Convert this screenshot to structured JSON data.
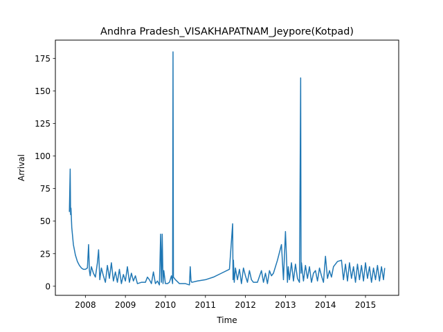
{
  "chart_data": {
    "type": "line",
    "title": "Andhra Pradesh_VISAKHAPATNAM_Jeypore(Kotpad)",
    "xlabel": "Time",
    "ylabel": "Arrival",
    "xlim": [
      2007.25,
      2015.83
    ],
    "ylim": [
      -7,
      189
    ],
    "x_ticks": [
      {
        "value": 2008,
        "label": "2008"
      },
      {
        "value": 2009,
        "label": "2009"
      },
      {
        "value": 2010,
        "label": "2010"
      },
      {
        "value": 2011,
        "label": "2011"
      },
      {
        "value": 2012,
        "label": "2012"
      },
      {
        "value": 2013,
        "label": "2013"
      },
      {
        "value": 2014,
        "label": "2014"
      },
      {
        "value": 2015,
        "label": "2015"
      }
    ],
    "y_ticks": [
      {
        "value": 0,
        "label": "0"
      },
      {
        "value": 25,
        "label": "25"
      },
      {
        "value": 50,
        "label": "50"
      },
      {
        "value": 75,
        "label": "75"
      },
      {
        "value": 100,
        "label": "100"
      },
      {
        "value": 125,
        "label": "125"
      },
      {
        "value": 150,
        "label": "150"
      },
      {
        "value": 175,
        "label": "175"
      }
    ],
    "grid": false,
    "legend": "none",
    "line_color": "#1f77b4",
    "series": [
      {
        "x": [
          2007.6,
          2007.62,
          2007.63,
          2007.64,
          2007.66,
          2007.7,
          2007.75,
          2007.8,
          2007.85,
          2007.9,
          2007.95,
          2008.0,
          2008.05,
          2008.08,
          2008.1,
          2008.12,
          2008.15,
          2008.2,
          2008.25,
          2008.3,
          2008.33,
          2008.36,
          2008.4,
          2008.45,
          2008.5,
          2008.55,
          2008.6,
          2008.65,
          2008.7,
          2008.75,
          2008.8,
          2008.85,
          2008.9,
          2008.95,
          2009.0,
          2009.05,
          2009.1,
          2009.15,
          2009.2,
          2009.25,
          2009.3,
          2009.4,
          2009.5,
          2009.55,
          2009.6,
          2009.65,
          2009.7,
          2009.75,
          2009.8,
          2009.85,
          2009.88,
          2009.9,
          2009.92,
          2009.94,
          2009.96,
          2010.0,
          2010.05,
          2010.1,
          2010.15,
          2010.18,
          2010.19,
          2010.2,
          2010.25,
          2010.35,
          2010.5,
          2010.6,
          2010.62,
          2010.64,
          2010.66,
          2010.8,
          2011.0,
          2011.2,
          2011.4,
          2011.6,
          2011.68,
          2011.69,
          2011.7,
          2011.72,
          2011.75,
          2011.8,
          2011.85,
          2011.9,
          2011.95,
          2012.0,
          2012.05,
          2012.1,
          2012.15,
          2012.2,
          2012.3,
          2012.4,
          2012.45,
          2012.5,
          2012.55,
          2012.6,
          2012.65,
          2012.7,
          2012.8,
          2012.9,
          2012.95,
          2013.0,
          2013.05,
          2013.07,
          2013.1,
          2013.15,
          2013.2,
          2013.25,
          2013.3,
          2013.35,
          2013.38,
          2013.39,
          2013.4,
          2013.45,
          2013.5,
          2013.55,
          2013.6,
          2013.65,
          2013.7,
          2013.75,
          2013.8,
          2013.85,
          2013.9,
          2013.95,
          2014.0,
          2014.05,
          2014.1,
          2014.15,
          2014.2,
          2014.3,
          2014.4,
          2014.45,
          2014.5,
          2014.55,
          2014.6,
          2014.65,
          2014.7,
          2014.75,
          2014.8,
          2014.85,
          2014.9,
          2014.95,
          2015.0,
          2015.05,
          2015.1,
          2015.15,
          2015.2,
          2015.25,
          2015.3,
          2015.35,
          2015.4,
          2015.45,
          2015.48
        ],
        "y": [
          57,
          90,
          55,
          60,
          45,
          32,
          24,
          19,
          16,
          14,
          13,
          13,
          14,
          32,
          12,
          8,
          15,
          10,
          7,
          18,
          28,
          5,
          14,
          8,
          3,
          16,
          6,
          18,
          4,
          11,
          3,
          13,
          2,
          9,
          4,
          15,
          3,
          10,
          4,
          8,
          2,
          3,
          3,
          7,
          5,
          2,
          11,
          2,
          4,
          1,
          40,
          3,
          40,
          2,
          12,
          2,
          2,
          3,
          8,
          2,
          180,
          7,
          5,
          2,
          2,
          1,
          15,
          4,
          3,
          4,
          5,
          7,
          10,
          13,
          48,
          5,
          20,
          3,
          14,
          5,
          13,
          2,
          14,
          8,
          3,
          12,
          5,
          3,
          3,
          12,
          3,
          10,
          2,
          12,
          8,
          10,
          20,
          32,
          5,
          42,
          3,
          15,
          5,
          18,
          4,
          17,
          6,
          3,
          160,
          10,
          18,
          4,
          16,
          6,
          15,
          3,
          10,
          12,
          4,
          14,
          8,
          3,
          23,
          6,
          12,
          7,
          15,
          19,
          20,
          5,
          17,
          4,
          18,
          6,
          15,
          3,
          17,
          5,
          16,
          4,
          18,
          6,
          15,
          3,
          14,
          5,
          16,
          4,
          15,
          5,
          14
        ]
      }
    ]
  }
}
